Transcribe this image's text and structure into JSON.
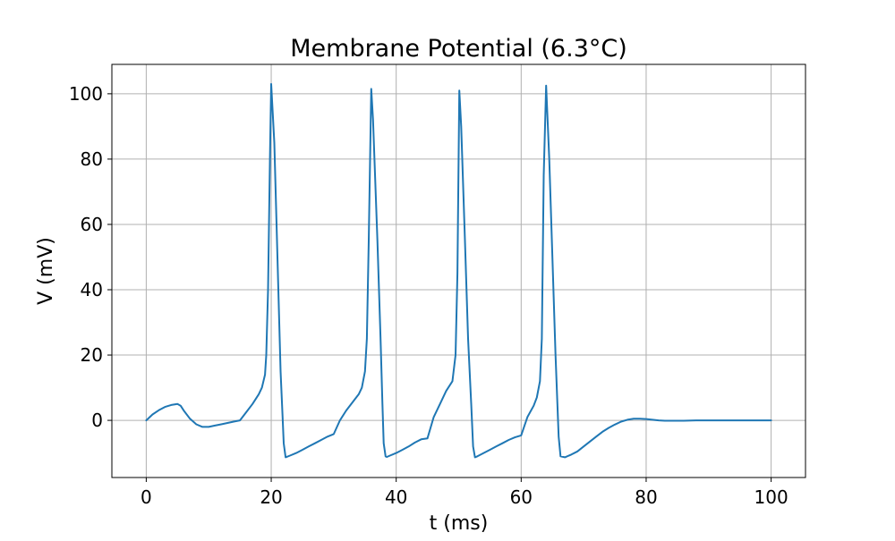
{
  "chart_data": {
    "type": "line",
    "title": "Membrane Potential (6.3°C)",
    "xlabel": "t (ms)",
    "ylabel": "V (mV)",
    "xlim": [
      -5.5,
      105.5
    ],
    "ylim": [
      -17.5,
      109
    ],
    "xticks": [
      0,
      20,
      40,
      60,
      80,
      100
    ],
    "yticks": [
      0,
      20,
      40,
      60,
      80,
      100
    ],
    "grid": true,
    "line_color": "#1f77b4",
    "grid_color": "#b0b0b0",
    "series": [
      {
        "x": [
          0,
          1,
          2,
          3,
          4,
          5,
          5.5,
          6,
          7,
          8,
          9,
          10,
          11,
          12,
          13,
          14,
          15,
          16,
          17,
          18,
          18.5,
          19,
          19.2,
          19.5,
          19.8,
          20,
          20.5,
          21,
          21.5,
          21.8,
          22,
          22.3,
          23,
          24,
          25,
          26,
          27,
          28,
          29,
          30,
          31,
          32,
          33,
          34,
          34.5,
          35,
          35.3,
          35.6,
          36,
          36.3,
          37,
          37.5,
          37.8,
          38,
          38.3,
          38.5,
          39,
          40,
          41,
          42,
          43,
          44,
          45,
          46,
          47,
          48,
          49,
          49.5,
          49.8,
          50.1,
          50.4,
          51,
          51.5,
          52,
          52.3,
          52.6,
          53,
          54,
          55,
          56,
          57,
          58,
          59,
          60,
          61,
          62,
          62.5,
          63,
          63.3,
          63.6,
          64,
          64.5,
          65,
          65.5,
          65.8,
          66,
          66.3,
          67,
          68,
          69,
          70,
          71,
          72,
          73,
          74,
          75,
          76,
          77,
          78,
          79,
          80,
          81,
          82,
          83,
          84,
          85,
          86,
          88,
          90,
          92,
          95,
          100
        ],
        "y": [
          0,
          1.8,
          3.1,
          4.1,
          4.7,
          5,
          4.5,
          3,
          0.5,
          -1.2,
          -2,
          -2,
          -1.6,
          -1.2,
          -0.8,
          -0.4,
          0,
          2.5,
          5,
          8,
          10,
          14,
          20,
          40,
          80,
          103,
          85,
          50,
          15,
          2,
          -7,
          -11.3,
          -10.8,
          -10,
          -9,
          -8,
          -7,
          -6,
          -5,
          -4.2,
          0,
          3,
          5.5,
          8,
          10,
          15,
          25,
          55,
          101.5,
          92,
          55,
          25,
          5,
          -7,
          -11,
          -11.2,
          -10.8,
          -10,
          -9,
          -8,
          -6.8,
          -5.8,
          -5.5,
          1,
          5,
          9,
          12,
          20,
          45,
          101,
          90,
          55,
          25,
          5,
          -8,
          -11.3,
          -11,
          -10,
          -9,
          -8,
          -7,
          -6,
          -5.2,
          -4.6,
          1,
          4.5,
          7,
          12,
          25,
          75,
          102.5,
          80,
          50,
          20,
          5,
          -5,
          -11,
          -11.3,
          -10.5,
          -9.5,
          -8,
          -6.5,
          -5,
          -3.5,
          -2.3,
          -1.3,
          -0.4,
          0.2,
          0.5,
          0.5,
          0.4,
          0.2,
          0,
          -0.1,
          -0.1,
          -0.1,
          -0.1,
          0,
          0,
          0,
          0,
          0
        ]
      }
    ]
  }
}
